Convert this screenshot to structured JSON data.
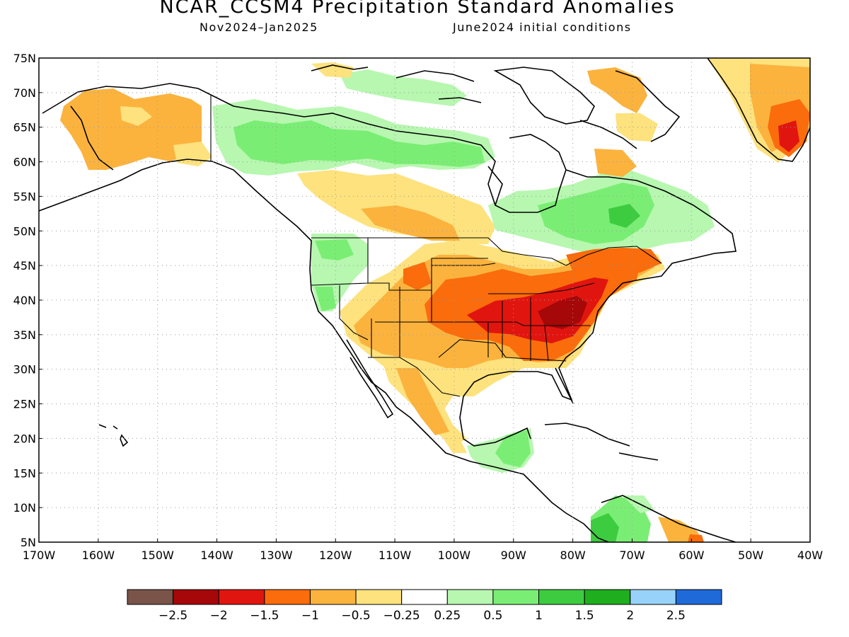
{
  "header": {
    "title": "NCAR_CCSM4 Precipitation Standard Anomalies",
    "period": "Nov2024–Jan2025",
    "init": "June2024 initial conditions"
  },
  "map": {
    "lon_labels": [
      "170W",
      "160W",
      "150W",
      "140W",
      "130W",
      "120W",
      "110W",
      "100W",
      "90W",
      "80W",
      "70W",
      "60W",
      "50W",
      "40W"
    ],
    "lat_labels": [
      "75N",
      "70N",
      "65N",
      "60N",
      "55N",
      "50N",
      "45N",
      "40N",
      "35N",
      "30N",
      "25N",
      "20N",
      "15N",
      "10N",
      "5N"
    ],
    "lon_range": [
      -170,
      -40
    ],
    "lat_range": [
      5,
      75
    ],
    "grid": "dotted, every 10° longitude and 5° latitude",
    "regions": [
      {
        "region": "Alaska",
        "anomaly": "-0.5 to -1 (dry)"
      },
      {
        "region": "Ohio Valley / Mid-Atlantic / Northeast US",
        "anomaly": "-1.5 to -2 (very dry)"
      },
      {
        "region": "Southern Plains / Southwest US",
        "anomaly": "-0.5 to -1.5 (dry)"
      },
      {
        "region": "Pacific Northwest",
        "anomaly": "+0.25 to +0.5 (wet)"
      },
      {
        "region": "Northern Canada / Quebec / Labrador",
        "anomaly": "+0.25 to +1 (wet)"
      },
      {
        "region": "Southeast Greenland",
        "anomaly": "-0.5 to -2 (dry)"
      },
      {
        "region": "Yucatan / Central America",
        "anomaly": "+0.25 to +1 (wet)"
      },
      {
        "region": "Northwest South America",
        "anomaly": "+0.5 to +1.5 (wet)"
      }
    ]
  },
  "colorbar": {
    "colors": [
      "#7a5448",
      "#a60708",
      "#e1150f",
      "#fa6c0c",
      "#fbb33e",
      "#fde27e",
      "#ffffff",
      "#b7f7b0",
      "#7aee74",
      "#3dcc40",
      "#1fae1e",
      "#97d2fa",
      "#1e6ad8"
    ],
    "labels": [
      "-2.5",
      "-2",
      "-1.5",
      "-1",
      "-0.5",
      "-0.25",
      "0.25",
      "0.5",
      "1",
      "1.5",
      "2",
      "2.5"
    ]
  },
  "palette": {
    "dry_mild": "#fde27e",
    "dry_mod": "#fbb33e",
    "dry_strong": "#fa6c0c",
    "dry_vstrong": "#e1150f",
    "dry_ext": "#a60708",
    "wet_mild": "#b7f7b0",
    "wet_mod": "#7aee74",
    "wet_strong": "#3dcc40",
    "wet_vstrong": "#1fae1e"
  }
}
